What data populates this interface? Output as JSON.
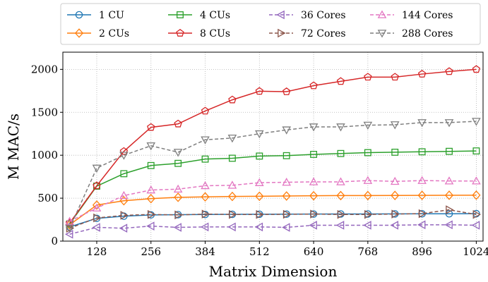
{
  "chart_data": {
    "type": "line",
    "title": "",
    "xlabel": "Matrix Dimension",
    "ylabel": "M MAC/s",
    "xlim": [
      48,
      1040
    ],
    "ylim": [
      0,
      2200
    ],
    "xticks": [
      128,
      256,
      384,
      512,
      640,
      768,
      896,
      1024
    ],
    "yticks": [
      0,
      500,
      1000,
      1500,
      2000
    ],
    "grid": true,
    "legend_position": "top",
    "x": [
      64,
      128,
      192,
      256,
      320,
      384,
      448,
      512,
      576,
      640,
      704,
      768,
      832,
      896,
      960,
      1024
    ],
    "series": [
      {
        "name": "1 CU",
        "color": "#1f77b4",
        "marker": "circle",
        "dash": false,
        "values": [
          165,
          265,
          290,
          305,
          308,
          310,
          312,
          313,
          314,
          315,
          316,
          316,
          317,
          318,
          318,
          320
        ]
      },
      {
        "name": "2 CUs",
        "color": "#ff7f0e",
        "marker": "diamond",
        "dash": false,
        "values": [
          190,
          420,
          470,
          495,
          510,
          515,
          520,
          522,
          525,
          528,
          530,
          530,
          532,
          533,
          534,
          535
        ]
      },
      {
        "name": "4 CUs",
        "color": "#2ca02c",
        "marker": "square",
        "dash": false,
        "values": [
          200,
          640,
          785,
          880,
          905,
          955,
          965,
          990,
          995,
          1010,
          1020,
          1030,
          1035,
          1040,
          1045,
          1050
        ]
      },
      {
        "name": "8 CUs",
        "color": "#d62728",
        "marker": "pentagon",
        "dash": false,
        "values": [
          210,
          645,
          1045,
          1325,
          1365,
          1515,
          1645,
          1745,
          1740,
          1810,
          1860,
          1910,
          1910,
          1945,
          1975,
          2000
        ]
      },
      {
        "name": "36 Cores",
        "color": "#9467bd",
        "marker": "triangle-left",
        "dash": true,
        "values": [
          80,
          160,
          150,
          175,
          160,
          165,
          165,
          165,
          160,
          185,
          185,
          185,
          185,
          190,
          190,
          185
        ]
      },
      {
        "name": "72 Cores",
        "color": "#8c564b",
        "marker": "triangle-right",
        "dash": true,
        "values": [
          150,
          270,
          300,
          310,
          305,
          315,
          310,
          310,
          312,
          315,
          310,
          310,
          315,
          320,
          365,
          310
        ]
      },
      {
        "name": "144 Cores",
        "color": "#e377c2",
        "marker": "triangle-up",
        "dash": true,
        "values": [
          230,
          385,
          530,
          595,
          605,
          645,
          650,
          680,
          685,
          690,
          690,
          705,
          695,
          705,
          700,
          700
        ]
      },
      {
        "name": "288 Cores",
        "color": "#7f7f7f",
        "marker": "triangle-down",
        "dash": true,
        "values": [
          150,
          850,
          1000,
          1110,
          1035,
          1180,
          1200,
          1250,
          1295,
          1330,
          1330,
          1350,
          1355,
          1380,
          1380,
          1395
        ]
      }
    ]
  }
}
